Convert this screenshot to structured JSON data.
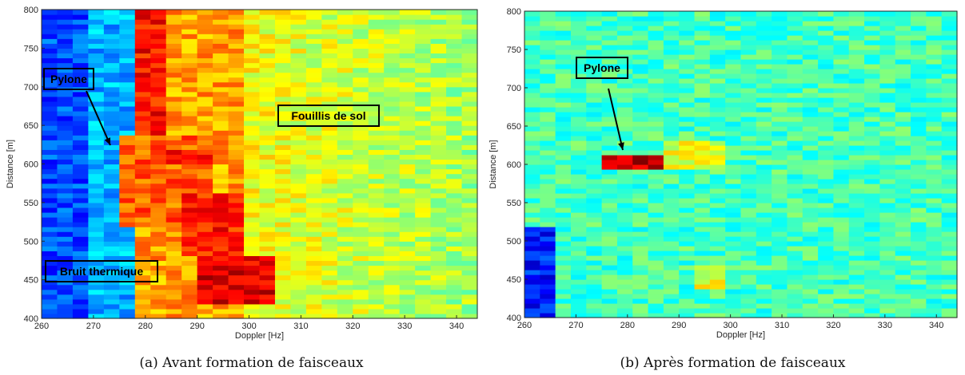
{
  "chart_data": [
    {
      "type": "heatmap",
      "caption": "(a) Avant formation de faisceaux",
      "xlabel": "Doppler [Hz]",
      "ylabel": "Distance [m]",
      "xlim": [
        260,
        344
      ],
      "ylim": [
        400,
        800
      ],
      "xticks": [
        260,
        270,
        280,
        290,
        300,
        310,
        320,
        330,
        340
      ],
      "yticks": [
        400,
        450,
        500,
        550,
        600,
        650,
        700,
        750,
        800
      ],
      "colormap": "jet",
      "regions": [
        {
          "x": [
            260,
            270
          ],
          "y": [
            400,
            800
          ],
          "level": 0.2
        },
        {
          "x": [
            270,
            277
          ],
          "y": [
            400,
            800
          ],
          "level": 0.3
        },
        {
          "x": [
            278,
            285
          ],
          "y": [
            640,
            800
          ],
          "level": 0.86
        },
        {
          "x": [
            276,
            292
          ],
          "y": [
            520,
            640
          ],
          "level": 0.78
        },
        {
          "x": [
            288,
            300
          ],
          "y": [
            480,
            560
          ],
          "level": 0.85
        },
        {
          "x": [
            289,
            306
          ],
          "y": [
            420,
            480
          ],
          "level": 0.9
        },
        {
          "x": [
            285,
            294
          ],
          "y": [
            600,
            620
          ],
          "level": 0.88
        }
      ],
      "annotations": [
        {
          "text": "Pylone",
          "x": 275,
          "y": 612
        },
        {
          "text": "Fouillis de sol",
          "x": 316,
          "y": 658
        },
        {
          "text": "Bruit thermique",
          "x": 268,
          "y": 458
        }
      ]
    },
    {
      "type": "heatmap",
      "caption": "(b) Après formation de faisceaux",
      "xlabel": "Doppler [Hz]",
      "ylabel": "Distance [m]",
      "xlim": [
        260,
        344
      ],
      "ylim": [
        400,
        800
      ],
      "xticks": [
        260,
        270,
        280,
        290,
        300,
        310,
        320,
        330,
        340
      ],
      "yticks": [
        400,
        450,
        500,
        550,
        600,
        650,
        700,
        750,
        800
      ],
      "colormap": "jet",
      "regions": [
        {
          "x": [
            260,
            266
          ],
          "y": [
            400,
            520
          ],
          "level": 0.15
        },
        {
          "x": [
            274,
            286
          ],
          "y": [
            596,
            614
          ],
          "level": 0.92
        },
        {
          "x": [
            286,
            300
          ],
          "y": [
            596,
            630
          ],
          "level": 0.6
        },
        {
          "x": [
            294,
            300
          ],
          "y": [
            440,
            470
          ],
          "level": 0.6
        }
      ],
      "annotations": [
        {
          "text": "Pylone",
          "x": 280,
          "y": 605
        }
      ]
    }
  ]
}
